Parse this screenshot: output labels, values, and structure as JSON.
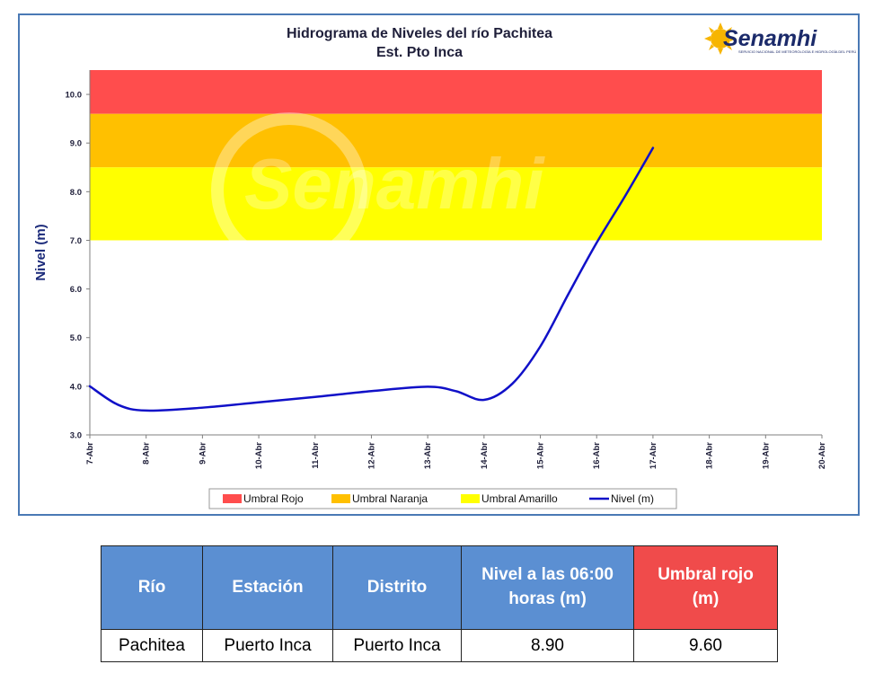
{
  "colors": {
    "umbral_rojo": "#ff4d4d",
    "umbral_naranja": "#ffc000",
    "umbral_amarillo": "#ffff00",
    "nivel_line": "#1010c8",
    "frame_border": "#4a79b5",
    "table_header": "#5b8fd2",
    "table_header_red": "#f04b4b"
  },
  "logo": {
    "text": "Senamhi",
    "subtitle": "SERVICIO NACIONAL DE METEOROLOGÍA E HIDROLOGÍA DEL PERÚ",
    "watermark": "Senamhi",
    "icon": "sun-icon"
  },
  "chart_data": {
    "type": "line",
    "title": "Hidrograma de Niveles del río Pachitea",
    "subtitle": "Est. Pto Inca",
    "xlabel": "",
    "ylabel": "Nivel (m)",
    "ylim": [
      3.0,
      10.5
    ],
    "yticks": [
      "3.0",
      "4.0",
      "5.0",
      "6.0",
      "7.0",
      "8.0",
      "9.0",
      "10.0"
    ],
    "xticks": [
      "7-Abr",
      "8-Abr",
      "9-Abr",
      "10-Abr",
      "11-Abr",
      "12-Abr",
      "13-Abr",
      "14-Abr",
      "15-Abr",
      "16-Abr",
      "17-Abr",
      "18-Abr",
      "19-Abr",
      "20-Abr"
    ],
    "grid": false,
    "legend_position": "bottom",
    "bands": [
      {
        "name": "Umbral Rojo",
        "from": 9.6,
        "to": 10.5,
        "color": "#ff4d4d"
      },
      {
        "name": "Umbral Naranja",
        "from": 8.5,
        "to": 9.6,
        "color": "#ffc000"
      },
      {
        "name": "Umbral Amarillo",
        "from": 7.0,
        "to": 8.5,
        "color": "#ffff00"
      }
    ],
    "series": [
      {
        "name": "Nivel (m)",
        "x": [
          "7-Abr",
          "7.5-Abr",
          "8-Abr",
          "9-Abr",
          "10-Abr",
          "11-Abr",
          "12-Abr",
          "13-Abr",
          "13.5-Abr",
          "14-Abr",
          "14.5-Abr",
          "15-Abr",
          "15.5-Abr",
          "16-Abr",
          "16.5-Abr",
          "17-Abr"
        ],
        "x_index": [
          0,
          0.5,
          1,
          2,
          3,
          4,
          5,
          6,
          6.5,
          7,
          7.5,
          8,
          8.5,
          9,
          9.5,
          10
        ],
        "values": [
          4.0,
          3.62,
          3.5,
          3.56,
          3.67,
          3.78,
          3.9,
          3.99,
          3.9,
          3.72,
          4.05,
          4.82,
          5.9,
          6.95,
          7.9,
          8.9
        ]
      }
    ]
  },
  "table": {
    "headers": [
      "Río",
      "Estación",
      "Distrito",
      "Nivel a las 06:00 horas (m)",
      "Umbral rojo (m)"
    ],
    "rows": [
      [
        "Pachitea",
        "Puerto Inca",
        "Puerto Inca",
        "8.90",
        "9.60"
      ]
    ]
  }
}
